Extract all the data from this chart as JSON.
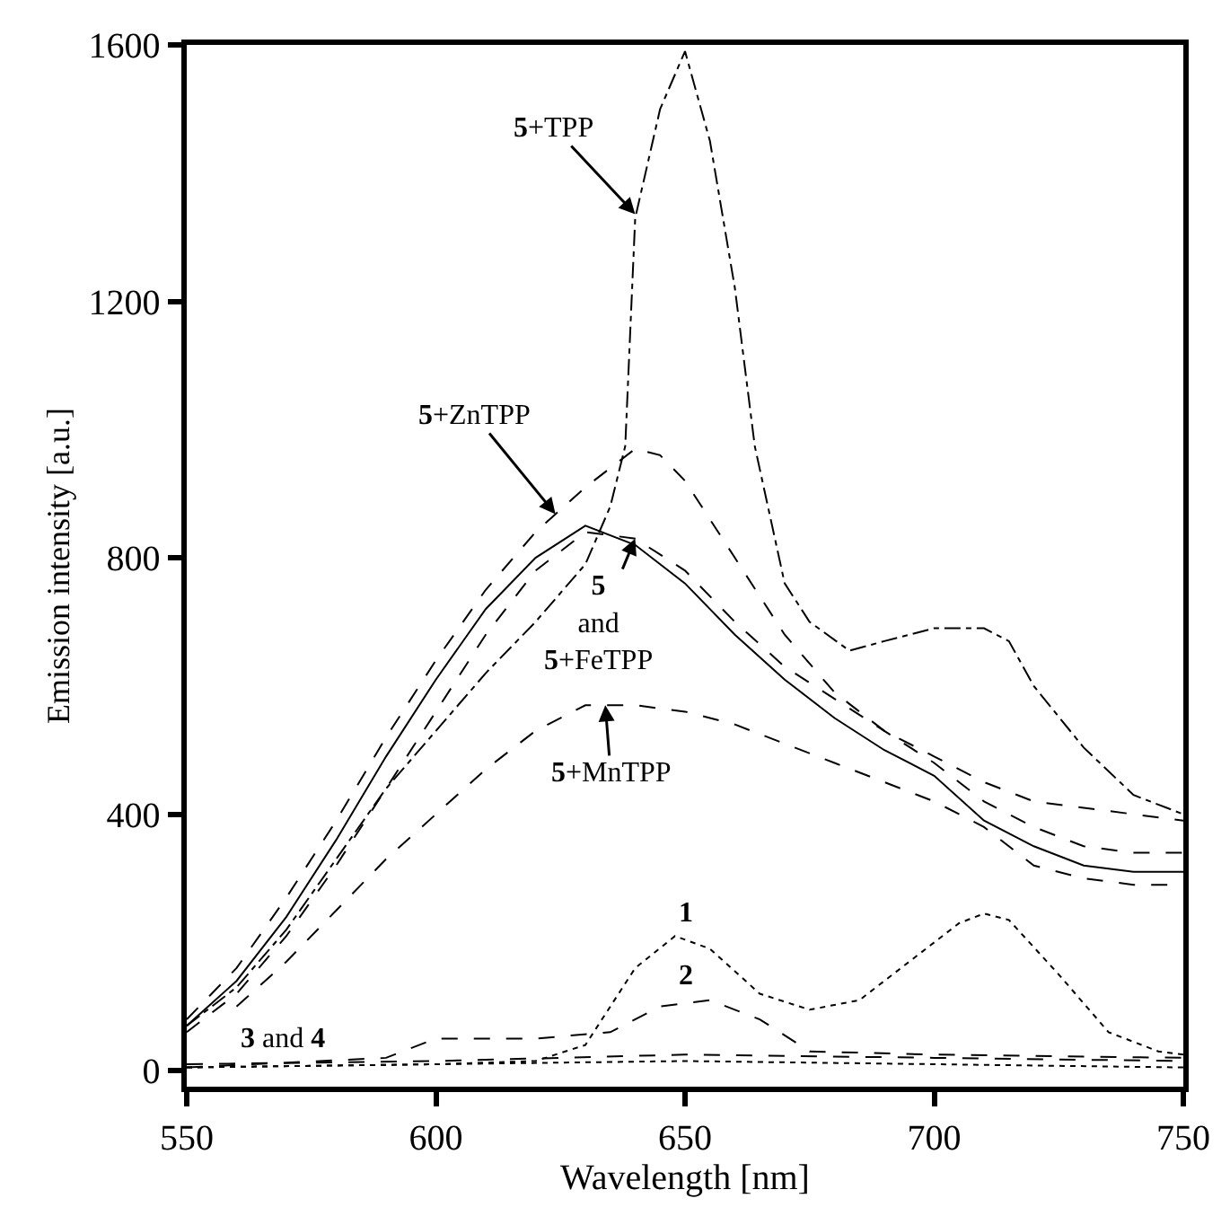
{
  "chart_data": {
    "type": "line",
    "xlabel": "Wavelength [nm]",
    "ylabel": "Emission intensity [a.u.]",
    "xlim": [
      550,
      750
    ],
    "xticks": [
      550,
      600,
      650,
      700,
      750
    ],
    "ylim": [
      -25,
      1600
    ],
    "yticks": [
      0,
      400,
      800,
      1200,
      1600
    ],
    "marker": "none",
    "series": [
      {
        "color": "#000000",
        "line_style": "dashdot",
        "x": [
          550,
          560,
          570,
          580,
          590,
          600,
          610,
          620,
          630,
          635,
          638,
          640,
          645,
          650,
          655,
          660,
          664,
          670,
          675,
          683,
          690,
          700,
          710,
          715,
          720,
          730,
          740,
          750
        ],
        "values": [
          70,
          130,
          220,
          330,
          440,
          530,
          620,
          700,
          790,
          880,
          974,
          1330,
          1500,
          1590,
          1450,
          1221,
          974,
          760,
          700,
          655,
          670,
          690,
          690,
          670,
          600,
          504,
          430,
          400
        ]
      },
      {
        "color": "#000000",
        "line_style": "dashed",
        "x": [
          550,
          560,
          570,
          580,
          590,
          600,
          610,
          620,
          630,
          640,
          645,
          650,
          660,
          670,
          680,
          690,
          700,
          710,
          720,
          730,
          740,
          750
        ],
        "values": [
          80,
          160,
          270,
          390,
          520,
          640,
          750,
          840,
          910,
          970,
          960,
          920,
          800,
          680,
          590,
          530,
          490,
          450,
          420,
          410,
          400,
          390
        ]
      },
      {
        "color": "#000000",
        "line_style": "solid",
        "x": [
          550,
          560,
          570,
          580,
          590,
          600,
          610,
          620,
          630,
          640,
          650,
          660,
          670,
          680,
          690,
          700,
          710,
          720,
          730,
          740,
          750
        ],
        "values": [
          70,
          140,
          240,
          360,
          490,
          610,
          720,
          800,
          850,
          820,
          760,
          680,
          610,
          550,
          500,
          460,
          390,
          350,
          320,
          310,
          310
        ]
      },
      {
        "color": "#000000",
        "line_style": "dashed",
        "x": [
          550,
          560,
          570,
          580,
          590,
          600,
          610,
          620,
          630,
          640,
          650,
          660,
          670,
          680,
          690,
          700,
          710,
          720,
          730,
          740,
          750
        ],
        "values": [
          60,
          120,
          210,
          320,
          440,
          560,
          680,
          780,
          840,
          830,
          780,
          700,
          630,
          580,
          530,
          480,
          420,
          380,
          350,
          340,
          340
        ]
      },
      {
        "color": "#000000",
        "line_style": "dashed",
        "x": [
          560,
          570,
          580,
          590,
          600,
          610,
          620,
          630,
          640,
          650,
          660,
          670,
          680,
          690,
          700,
          710,
          720,
          730,
          740,
          750
        ],
        "values": [
          100,
          170,
          250,
          330,
          400,
          470,
          530,
          570,
          570,
          560,
          540,
          510,
          480,
          450,
          420,
          380,
          320,
          300,
          290,
          290
        ]
      },
      {
        "color": "#000000",
        "line_style": "dotted",
        "x": [
          550,
          600,
          620,
          630,
          640,
          648,
          655,
          665,
          675,
          685,
          695,
          705,
          710,
          715,
          725,
          735,
          745,
          750
        ],
        "values": [
          5,
          10,
          15,
          40,
          160,
          210,
          190,
          120,
          95,
          110,
          170,
          230,
          245,
          235,
          150,
          60,
          30,
          25
        ]
      },
      {
        "color": "#000000",
        "line_style": "dashed",
        "x": [
          550,
          590,
          600,
          620,
          635,
          645,
          655,
          665,
          675,
          700,
          750
        ],
        "values": [
          5,
          20,
          50,
          50,
          60,
          100,
          110,
          80,
          30,
          25,
          20
        ]
      },
      {
        "color": "#000000",
        "line_style": "dashed",
        "x": [
          550,
          600,
          650,
          700,
          750
        ],
        "values": [
          10,
          15,
          25,
          20,
          15
        ]
      },
      {
        "color": "#000000",
        "line_style": "dotted",
        "x": [
          550,
          650,
          750
        ],
        "values": [
          5,
          15,
          5
        ]
      }
    ],
    "annotations": [
      {
        "text": "5+TPP",
        "x": 640,
        "y": 1336
      },
      {
        "text": "5+ZnTPP",
        "x": 624,
        "y": 868
      },
      {
        "text": "5\nand\n5+FeTPP",
        "x": 640,
        "y": 830
      },
      {
        "text": "5+MnTPP",
        "x": 634,
        "y": 570
      },
      {
        "text": "1",
        "x": 650,
        "y": 218
      },
      {
        "text": "2",
        "x": 650,
        "y": 118
      },
      {
        "text": "3 and 4",
        "x": 560,
        "y": 11
      }
    ]
  }
}
